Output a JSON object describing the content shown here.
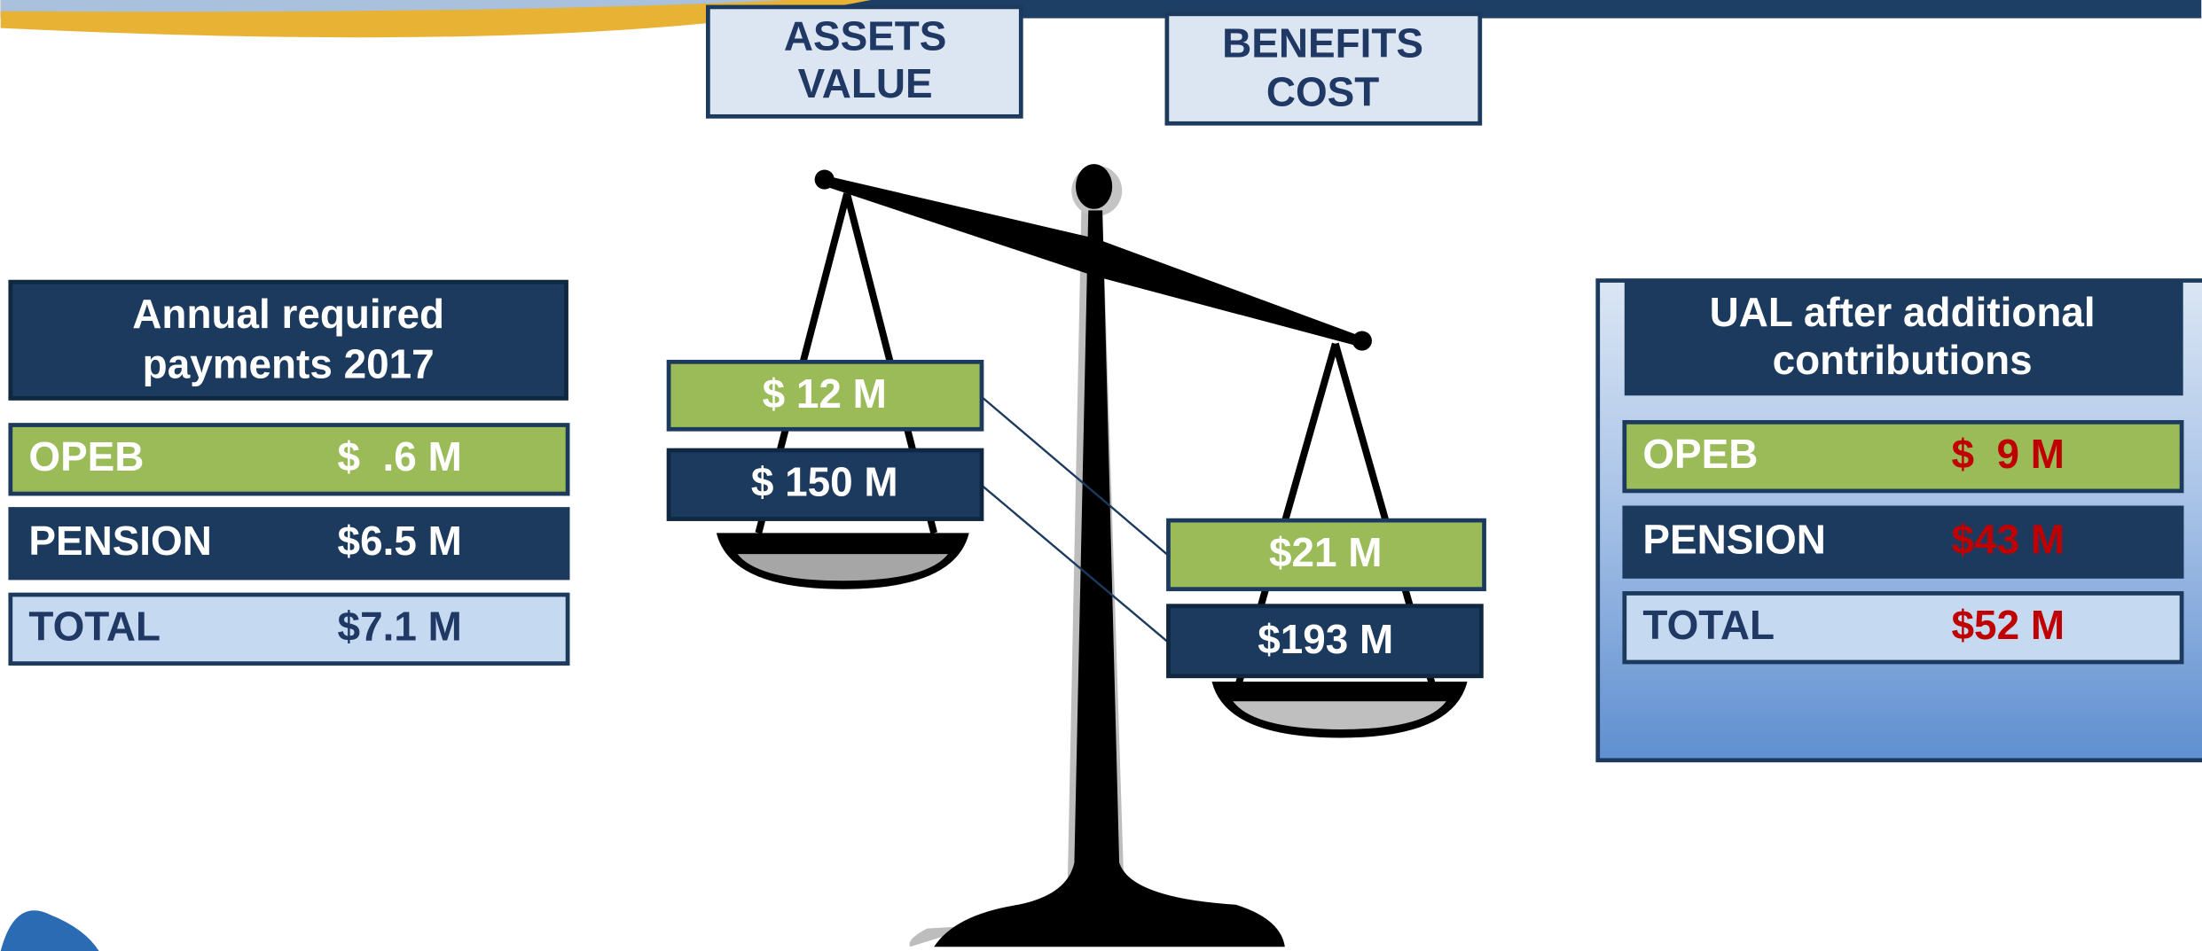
{
  "labels": {
    "assets": [
      "ASSETS",
      "VALUE"
    ],
    "benefits": [
      "BENEFITS",
      "COST"
    ]
  },
  "left_table": {
    "title": [
      "Annual required",
      "payments 2017"
    ],
    "rows": [
      [
        "OPEB",
        "$  .6 M"
      ],
      [
        "PENSION",
        "$6.5 M"
      ],
      [
        "TOTAL",
        "$7.1 M"
      ]
    ]
  },
  "scale": {
    "left_pan": [
      "$ 12 M",
      "$ 150 M"
    ],
    "right_pan": [
      "$21 M",
      "$193 M"
    ]
  },
  "right_table": {
    "title": [
      "UAL after additional",
      "contributions"
    ],
    "rows": [
      [
        "OPEB",
        "$  9 M"
      ],
      [
        "PENSION",
        "$43 M"
      ],
      [
        "TOTAL",
        "$52 M"
      ]
    ]
  }
}
